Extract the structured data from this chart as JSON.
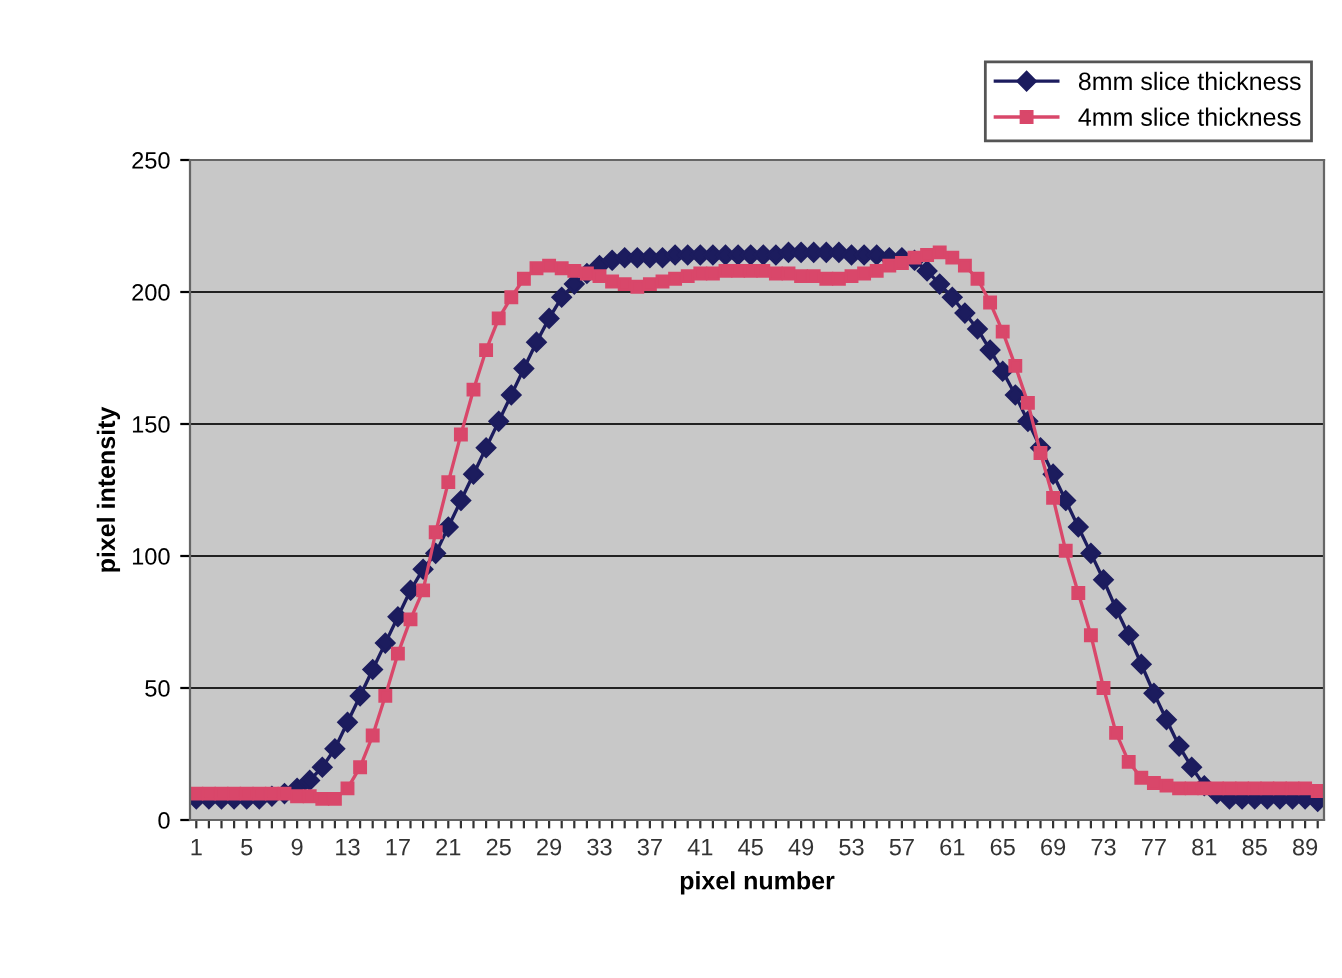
{
  "chart_data": {
    "type": "line",
    "xlabel": "pixel number",
    "ylabel": "pixel intensity",
    "categories": [
      "1",
      null,
      null,
      null,
      "5",
      null,
      null,
      null,
      "9",
      null,
      null,
      null,
      "13",
      null,
      null,
      null,
      "17",
      null,
      null,
      null,
      "21",
      null,
      null,
      null,
      "25",
      null,
      null,
      null,
      "29",
      null,
      null,
      null,
      "33",
      null,
      null,
      null,
      "37",
      null,
      null,
      null,
      "41",
      null,
      null,
      null,
      "45",
      null,
      null,
      null,
      "49",
      null,
      null,
      null,
      "53",
      null,
      null,
      null,
      "57",
      null,
      null,
      null,
      "61",
      null,
      null,
      null,
      "65",
      null,
      null,
      null,
      "69",
      null,
      null,
      null,
      "73",
      null,
      null,
      null,
      "77",
      null,
      null,
      null,
      "81",
      null,
      null,
      null,
      "85",
      null,
      null,
      null,
      "89",
      null
    ],
    "series": [
      {
        "name": "8mm slice thickness",
        "color": "#1c1c5e",
        "marker": "diamond",
        "values": [
          8,
          8,
          8,
          8,
          8,
          8,
          9,
          10,
          12,
          15,
          20,
          27,
          37,
          47,
          57,
          67,
          77,
          87,
          95,
          101,
          111,
          121,
          131,
          141,
          151,
          161,
          171,
          181,
          190,
          198,
          203,
          207,
          210,
          212,
          213,
          213,
          213,
          213,
          214,
          214,
          214,
          214,
          214,
          214,
          214,
          214,
          214,
          215,
          215,
          215,
          215,
          215,
          214,
          214,
          214,
          213,
          213,
          212,
          208,
          203,
          198,
          192,
          186,
          178,
          170,
          161,
          151,
          141,
          131,
          121,
          111,
          101,
          91,
          80,
          70,
          59,
          48,
          38,
          28,
          20,
          13,
          10,
          8,
          8,
          8,
          8,
          8,
          8,
          8,
          7
        ]
      },
      {
        "name": "4mm slice thickness",
        "color": "#d9476a",
        "marker": "square",
        "values": [
          10,
          10,
          10,
          10,
          10,
          10,
          10,
          10,
          9,
          9,
          8,
          8,
          12,
          20,
          32,
          47,
          63,
          76,
          87,
          109,
          128,
          146,
          163,
          178,
          190,
          198,
          205,
          209,
          210,
          209,
          208,
          207,
          206,
          204,
          203,
          202,
          203,
          204,
          205,
          206,
          207,
          207,
          208,
          208,
          208,
          208,
          207,
          207,
          206,
          206,
          205,
          205,
          206,
          207,
          208,
          210,
          211,
          213,
          214,
          215,
          213,
          210,
          205,
          196,
          185,
          172,
          158,
          139,
          122,
          102,
          86,
          70,
          50,
          33,
          22,
          16,
          14,
          13,
          12,
          12,
          12,
          12,
          12,
          12,
          12,
          12,
          12,
          12,
          12,
          11
        ]
      }
    ],
    "ylim": [
      0,
      250
    ],
    "yticks": [
      0,
      50,
      100,
      150,
      200,
      250
    ],
    "grid": "y",
    "legend": "top right"
  }
}
